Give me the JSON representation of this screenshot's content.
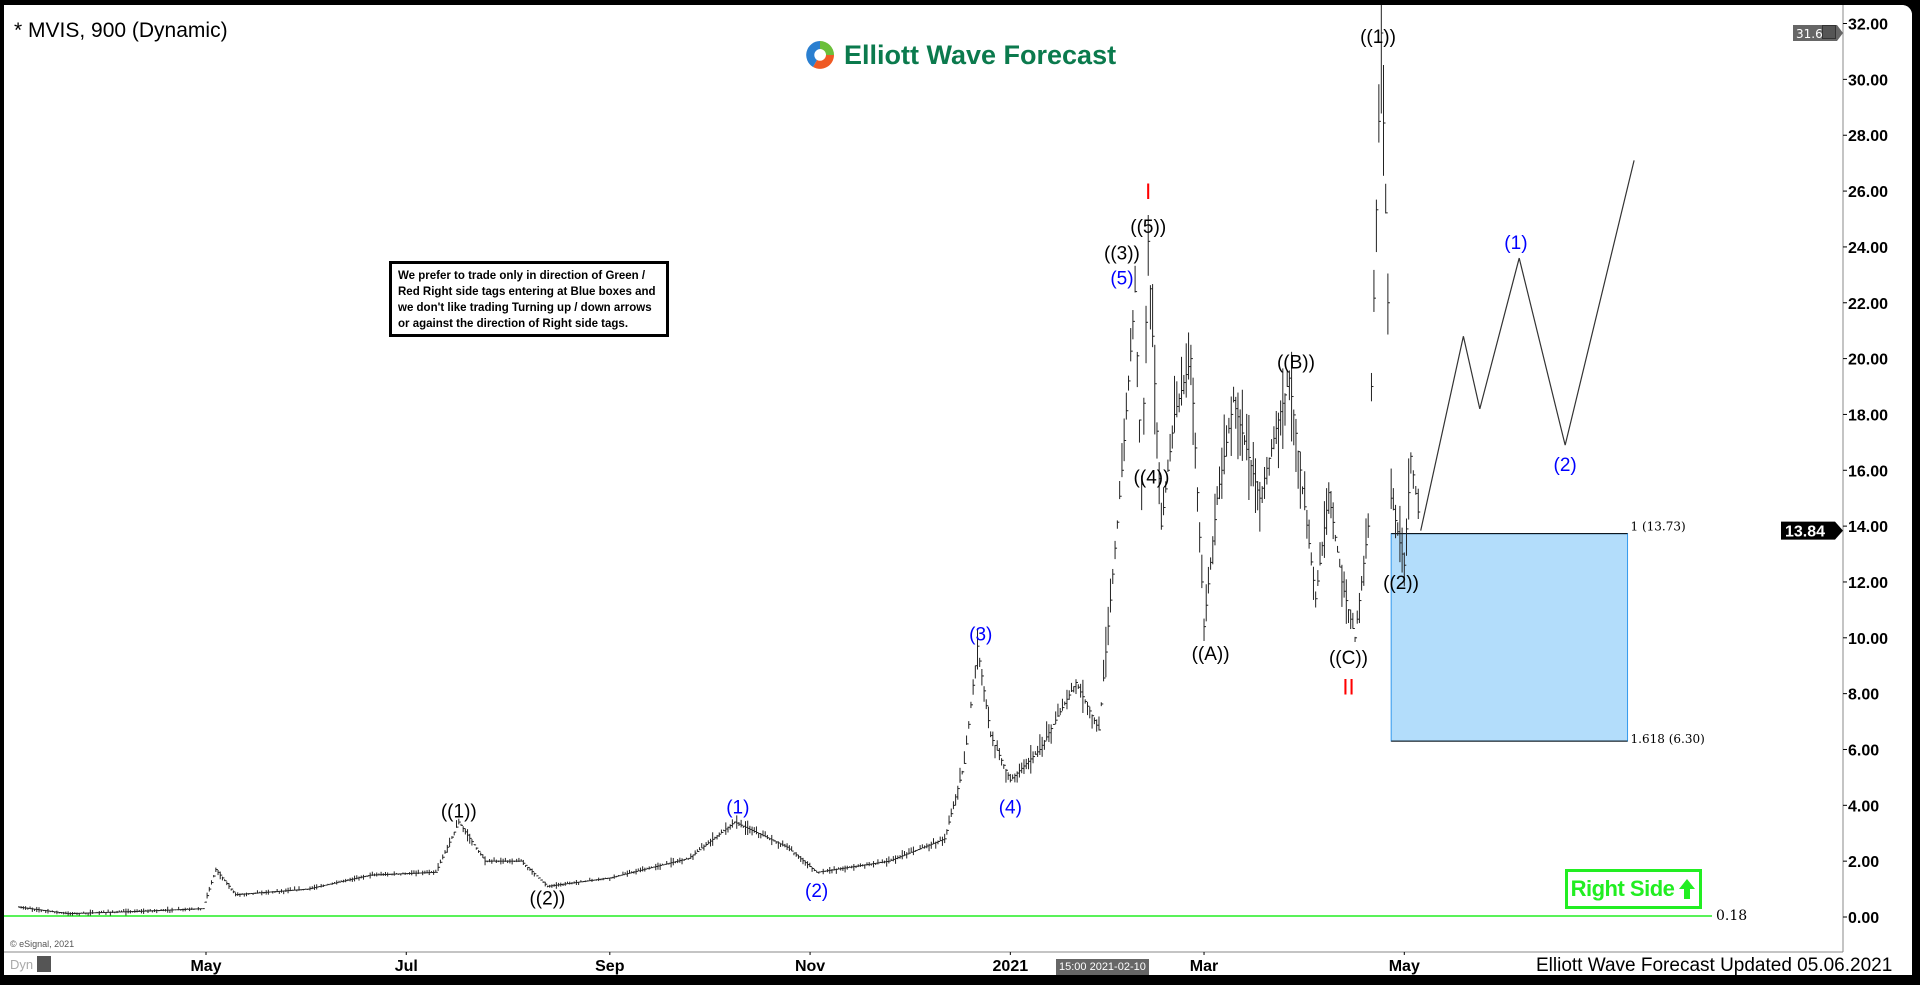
{
  "header": {
    "title": "* MVIS, 900 (Dynamic)",
    "logo_text": "Elliott Wave Forecast",
    "window_icon": "restore-window-icon"
  },
  "notice": "We prefer to trade only in direction of Green / Red Right side tags entering at Blue boxes and we don't like trading Turning up / down arrows or against the direction of Right side tags.",
  "right_side_tag": {
    "label": "Right Side",
    "icon": "arrow-up-icon",
    "color": "#22ee22"
  },
  "footer": {
    "updated": "Elliott Wave Forecast Updated 05.06.2021",
    "copyright": "© eSignal, 2021",
    "dyn": "Dyn",
    "crosshair_time": "15:00 2021-02-10"
  },
  "chart_data": {
    "type": "line",
    "symbol": "MVIS",
    "interval": "900",
    "ylim": [
      0,
      32
    ],
    "y_ticks": [
      "0.00",
      "2.00",
      "4.00",
      "6.00",
      "8.00",
      "10.00",
      "12.00",
      "14.00",
      "16.00",
      "18.00",
      "20.00",
      "22.00",
      "24.00",
      "26.00",
      "28.00",
      "30.00",
      "32.00"
    ],
    "x_ticks": [
      {
        "label": "May",
        "date": "2020-05-01"
      },
      {
        "label": "Jul",
        "date": "2020-07-01"
      },
      {
        "label": "Sep",
        "date": "2020-09-01"
      },
      {
        "label": "Nov",
        "date": "2020-11-01"
      },
      {
        "label": "2021",
        "date": "2021-01-01"
      },
      {
        "label": "Mar",
        "date": "2021-03-01"
      },
      {
        "label": "May",
        "date": "2021-05-01"
      }
    ],
    "grid": false,
    "price_path": [
      [
        "2020-03-05",
        0.35
      ],
      [
        "2020-03-20",
        0.12
      ],
      [
        "2020-04-10",
        0.2
      ],
      [
        "2020-04-30",
        0.3
      ],
      [
        "2020-05-04",
        1.7
      ],
      [
        "2020-05-10",
        0.8
      ],
      [
        "2020-06-01",
        1.0
      ],
      [
        "2020-06-20",
        1.5
      ],
      [
        "2020-07-10",
        1.6
      ],
      [
        "2020-07-17",
        3.4
      ],
      [
        "2020-07-25",
        2.0
      ],
      [
        "2020-08-05",
        2.0
      ],
      [
        "2020-08-13",
        1.1
      ],
      [
        "2020-09-01",
        1.4
      ],
      [
        "2020-09-25",
        2.1
      ],
      [
        "2020-10-09",
        3.4
      ],
      [
        "2020-10-25",
        2.5
      ],
      [
        "2020-11-03",
        1.6
      ],
      [
        "2020-11-25",
        2.0
      ],
      [
        "2020-12-12",
        2.8
      ],
      [
        "2020-12-18",
        5.5
      ],
      [
        "2020-12-22",
        9.7
      ],
      [
        "2020-12-26",
        6.5
      ],
      [
        "2021-01-01",
        4.9
      ],
      [
        "2021-01-10",
        6.0
      ],
      [
        "2021-01-21",
        8.4
      ],
      [
        "2021-01-28",
        6.7
      ],
      [
        "2021-02-04",
        16.0
      ],
      [
        "2021-02-08",
        22.4
      ],
      [
        "2021-02-10",
        15.5
      ],
      [
        "2021-02-12",
        24.2
      ],
      [
        "2021-02-16",
        14.0
      ],
      [
        "2021-02-20",
        18.0
      ],
      [
        "2021-02-25",
        20.0
      ],
      [
        "2021-03-01",
        10.4
      ],
      [
        "2021-03-05",
        15.0
      ],
      [
        "2021-03-10",
        18.5
      ],
      [
        "2021-03-18",
        15.0
      ],
      [
        "2021-03-23",
        17.5
      ],
      [
        "2021-03-27",
        19.3
      ],
      [
        "2021-04-04",
        11.4
      ],
      [
        "2021-04-08",
        15.2
      ],
      [
        "2021-04-12",
        12.0
      ],
      [
        "2021-04-16",
        10.0
      ],
      [
        "2021-04-20",
        14.0
      ],
      [
        "2021-04-21",
        19.0
      ],
      [
        "2021-04-24",
        31.66
      ],
      [
        "2021-04-26",
        22.0
      ],
      [
        "2021-04-27",
        15.0
      ],
      [
        "2021-05-01",
        12.6
      ],
      [
        "2021-05-03",
        16.5
      ],
      [
        "2021-05-06",
        13.84
      ]
    ],
    "projection_path": [
      [
        "2021-05-06",
        13.84
      ],
      [
        "2021-05-19",
        20.8
      ],
      [
        "2021-05-24",
        18.2
      ],
      [
        "2021-06-05",
        23.6
      ],
      [
        "2021-06-19",
        16.9
      ],
      [
        "2021-07-10",
        27.1
      ]
    ],
    "blue_box": {
      "top": 13.73,
      "bottom": 6.3,
      "start": "2021-04-27",
      "end": "2021-07-08",
      "top_label": "1 (13.73)",
      "bottom_label": "1.618 (6.30)",
      "color": "#b3ddfb"
    },
    "support_line": {
      "value": 0.18,
      "label": "0.18",
      "color": "#22ee22"
    },
    "last_price": "13.84",
    "high_price": "31.66",
    "annotations": [
      {
        "text": "((1))",
        "date": "2020-07-17",
        "price": 3.82,
        "color": "#000000"
      },
      {
        "text": "((2))",
        "date": "2020-08-13",
        "price": 0.7,
        "color": "#000000"
      },
      {
        "text": "(1)",
        "date": "2020-10-10",
        "price": 3.96,
        "color": "#0000ff"
      },
      {
        "text": "(2)",
        "date": "2020-11-03",
        "price": 0.97,
        "color": "#0000ff"
      },
      {
        "text": "(3)",
        "date": "2020-12-23",
        "price": 10.15,
        "color": "#0000ff"
      },
      {
        "text": "(4)",
        "date": "2021-01-01",
        "price": 3.96,
        "color": "#0000ff"
      },
      {
        "text": "(5)",
        "date": "2021-02-04",
        "price": 22.9,
        "color": "#0000ff"
      },
      {
        "text": "((3))",
        "date": "2021-02-04",
        "price": 23.8,
        "color": "#000000"
      },
      {
        "text": "((5))",
        "date": "2021-02-12",
        "price": 24.75,
        "color": "#000000"
      },
      {
        "text": "I",
        "date": "2021-02-12",
        "price": 25.76,
        "color": "#ff0000"
      },
      {
        "text": "((4))",
        "date": "2021-02-13",
        "price": 15.78,
        "color": "#000000"
      },
      {
        "text": "((A))",
        "date": "2021-03-03",
        "price": 9.45,
        "color": "#000000"
      },
      {
        "text": "((B))",
        "date": "2021-03-29",
        "price": 19.9,
        "color": "#000000"
      },
      {
        "text": "((C))",
        "date": "2021-04-14",
        "price": 9.32,
        "color": "#000000"
      },
      {
        "text": "II",
        "date": "2021-04-14",
        "price": 8.44,
        "color": "#ff0000"
      },
      {
        "text": "((1))",
        "date": "2021-04-23",
        "price": 31.56,
        "color": "#000000"
      },
      {
        "text": "((2))",
        "date": "2021-04-30",
        "price": 12.0,
        "color": "#000000"
      },
      {
        "text": "(1)",
        "date": "2021-06-04",
        "price": 24.18,
        "color": "#0000ff"
      },
      {
        "text": "(2)",
        "date": "2021-06-19",
        "price": 16.22,
        "color": "#0000ff"
      }
    ]
  }
}
